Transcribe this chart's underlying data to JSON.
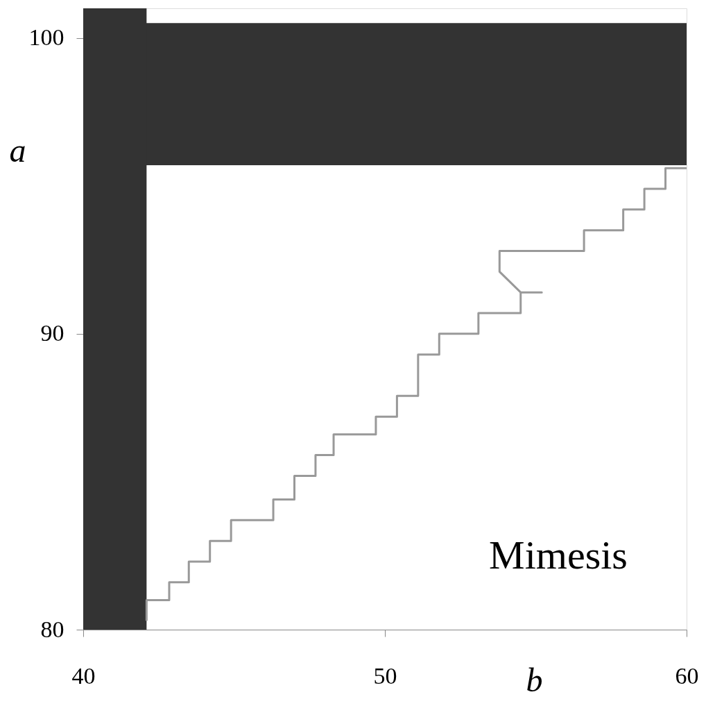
{
  "chart_data": {
    "type": "line",
    "xlabel": "b",
    "ylabel": "a",
    "xlim": [
      40,
      60
    ],
    "ylim": [
      80,
      101
    ],
    "xticks": [
      40,
      50,
      60
    ],
    "yticks": [
      80,
      90,
      100
    ],
    "grid": false,
    "annotations": [
      "Mimesis"
    ],
    "bands": [
      {
        "axis": "y",
        "from": 95.7,
        "to": 100.5,
        "color": "#333333"
      },
      {
        "axis": "x",
        "from": 40,
        "to": 42.1,
        "color": "#333333"
      }
    ],
    "series": [
      {
        "color": "#999999",
        "x": [
          42.1,
          42.1,
          42.85,
          42.85,
          43.5,
          43.5,
          44.2,
          44.2,
          44.9,
          44.9,
          46.3,
          46.3,
          47.0,
          47.0,
          47.7,
          47.7,
          48.3,
          48.3,
          49.7,
          49.7,
          50.4,
          50.4,
          51.1,
          51.1,
          51.8,
          51.8,
          53.1,
          53.1,
          54.5,
          54.5,
          55.2,
          54.5,
          53.8,
          53.8,
          56.6,
          56.6,
          57.9,
          57.9,
          58.6,
          58.6,
          59.3,
          59.3,
          60
        ],
        "values": [
          80.3,
          81.0,
          81.0,
          81.6,
          81.6,
          82.3,
          82.3,
          83.0,
          83.0,
          83.7,
          83.7,
          84.4,
          84.4,
          85.2,
          85.2,
          85.9,
          85.9,
          86.6,
          86.6,
          87.2,
          87.2,
          87.9,
          87.9,
          89.3,
          89.3,
          90.0,
          90.0,
          90.7,
          90.7,
          91.4,
          91.4,
          91.4,
          92.1,
          92.8,
          92.8,
          93.5,
          93.5,
          94.2,
          94.2,
          94.9,
          94.9,
          95.6,
          95.6
        ]
      }
    ]
  }
}
